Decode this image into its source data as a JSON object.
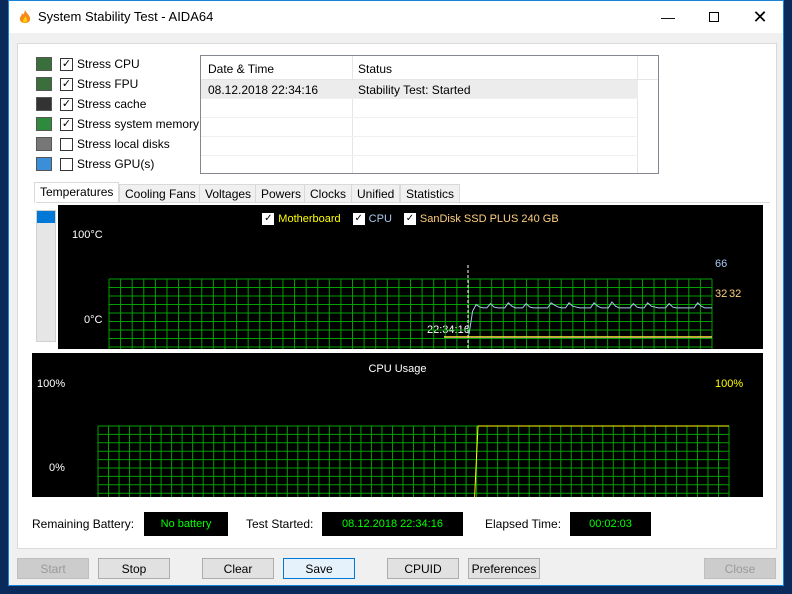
{
  "window": {
    "title": "System Stability Test - AIDA64",
    "icon": "flame-icon",
    "controls": [
      "minimize",
      "maximize",
      "close"
    ]
  },
  "stress_options": [
    {
      "label": "Stress CPU",
      "checked": true,
      "icon": "cpu-icon"
    },
    {
      "label": "Stress FPU",
      "checked": true,
      "icon": "fpu-icon"
    },
    {
      "label": "Stress cache",
      "checked": true,
      "icon": "cache-chip-icon"
    },
    {
      "label": "Stress system memory",
      "checked": true,
      "icon": "memory-icon"
    },
    {
      "label": "Stress local disks",
      "checked": false,
      "icon": "disk-icon"
    },
    {
      "label": "Stress GPU(s)",
      "checked": false,
      "icon": "gpu-icon"
    }
  ],
  "log": {
    "headers": [
      "Date & Time",
      "Status"
    ],
    "rows": [
      [
        "08.12.2018 22:34:16",
        "Stability Test: Started"
      ]
    ]
  },
  "tabs": [
    "Temperatures",
    "Cooling Fans",
    "Voltages",
    "Powers",
    "Clocks",
    "Unified",
    "Statistics"
  ],
  "selected_tab": "Temperatures",
  "colors": {
    "grid": "#00a000",
    "motherboard": "#ffff00",
    "cpu": "#a8c8f0",
    "ssd": "#ffd080",
    "cpu_usage": "#ffff00",
    "value_text": "#00ff00",
    "accent": "#0078d7"
  },
  "chart_data": [
    {
      "type": "line",
      "legend": [
        {
          "name": "Motherboard",
          "checked": true,
          "color": "#ffff00"
        },
        {
          "name": "CPU",
          "checked": true,
          "color": "#a8c8f0"
        },
        {
          "name": "SanDisk SSD PLUS 240 GB",
          "checked": true,
          "color": "#ffffff"
        }
      ],
      "y_top_label": "100°C",
      "y_bottom_label": "0°C",
      "ylim": [
        0,
        100
      ],
      "x_marker_label": "22:34:16",
      "grid": true,
      "series": [
        {
          "name": "CPU",
          "current_label": "66",
          "values": [
            35,
            62,
            70,
            67,
            66,
            66,
            71,
            67,
            66,
            66,
            66,
            72,
            68,
            66,
            66,
            66,
            71,
            67,
            66,
            66,
            66,
            66,
            66,
            72,
            69,
            67,
            66,
            66,
            72,
            68,
            67,
            66,
            66,
            66,
            66,
            72,
            68,
            66,
            66,
            66,
            73,
            68,
            66,
            66,
            66,
            66,
            71,
            67,
            66,
            66,
            72,
            68,
            67,
            66,
            66,
            66,
            71,
            67,
            66,
            66,
            66,
            66,
            66,
            66,
            72,
            68,
            66,
            66,
            66
          ]
        },
        {
          "name": "Motherboard",
          "current_label": "32",
          "values": [
            32,
            32
          ]
        },
        {
          "name": "SanDisk SSD PLUS 240 GB",
          "current_label": "32",
          "values": [
            32,
            32
          ]
        }
      ]
    },
    {
      "type": "line",
      "title": "CPU Usage",
      "y_top_label": "100%",
      "y_bottom_label": "0%",
      "ylim": [
        0,
        100
      ],
      "grid": true,
      "series": [
        {
          "name": "CPU Usage",
          "current_label": "100%",
          "values": [
            0,
            0,
            0,
            0,
            0,
            0,
            100,
            100
          ]
        }
      ]
    }
  ],
  "status": {
    "battery_label": "Remaining Battery:",
    "battery_value": "No battery",
    "started_label": "Test Started:",
    "started_value": "08.12.2018 22:34:16",
    "elapsed_label": "Elapsed Time:",
    "elapsed_value": "00:02:03"
  },
  "buttons": {
    "start": "Start",
    "stop": "Stop",
    "clear": "Clear",
    "save": "Save",
    "cpuid": "CPUID",
    "preferences": "Preferences",
    "close": "Close"
  }
}
